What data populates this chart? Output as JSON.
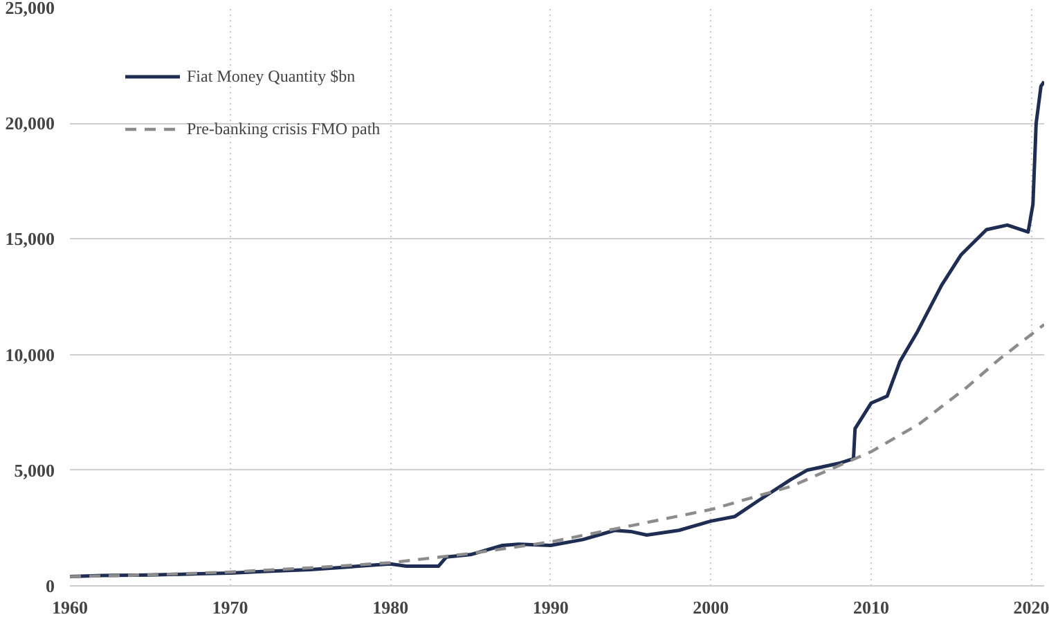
{
  "chart_data": {
    "type": "line",
    "xlim": [
      1960,
      2020.8
    ],
    "ylim": [
      0,
      25000
    ],
    "xticks": [
      1960,
      1970,
      1980,
      1990,
      2000,
      2010,
      {
        "value": 2020,
        "label": "2020"
      }
    ],
    "yticks": [
      {
        "value": 0,
        "label": "0"
      },
      {
        "value": 5000,
        "label": "5,000"
      },
      {
        "value": 10000,
        "label": "10,000"
      },
      {
        "value": 15000,
        "label": "15,000"
      },
      {
        "value": 20000,
        "label": "20,000"
      },
      {
        "value": 25000,
        "label": "25,000"
      }
    ],
    "grid": true,
    "legend": "top left",
    "series": [
      {
        "name": "Fiat Money Quantity $bn",
        "color": "#1f2d52",
        "line_style": "solid",
        "x": [
          1960,
          1962,
          1965,
          1968,
          1970,
          1972,
          1975,
          1978,
          1980,
          1981,
          1983,
          1983.5,
          1985,
          1987,
          1988,
          1990,
          1992,
          1994,
          1995,
          1996,
          1998,
          2000,
          2001.5,
          2003,
          2005,
          2006,
          2008,
          2008.9,
          2009,
          2010,
          2011,
          2011.8,
          2012.9,
          2014.4,
          2015.6,
          2017.2,
          2018.5,
          2019.8,
          2020.1,
          2020.3,
          2020.6,
          2020.8
        ],
        "values": [
          400,
          450,
          470,
          520,
          550,
          620,
          700,
          850,
          950,
          850,
          850,
          1250,
          1350,
          1750,
          1800,
          1750,
          2000,
          2400,
          2350,
          2200,
          2400,
          2800,
          3000,
          3700,
          4600,
          5000,
          5300,
          5500,
          6800,
          7900,
          8200,
          9700,
          11000,
          13000,
          14300,
          15400,
          15600,
          15300,
          16500,
          20000,
          21600,
          21800
        ]
      },
      {
        "name": "Pre-banking crisis FMO path",
        "color": "#8c8c8c",
        "line_style": "dashed",
        "x": [
          1960,
          1965,
          1970,
          1975,
          1980,
          1985,
          1990,
          1995,
          2000,
          2005,
          2010,
          2013,
          2016,
          2018,
          2020.8
        ],
        "values": [
          400,
          480,
          600,
          780,
          1000,
          1400,
          1900,
          2600,
          3300,
          4300,
          5800,
          7000,
          8600,
          9800,
          11300
        ]
      }
    ]
  }
}
